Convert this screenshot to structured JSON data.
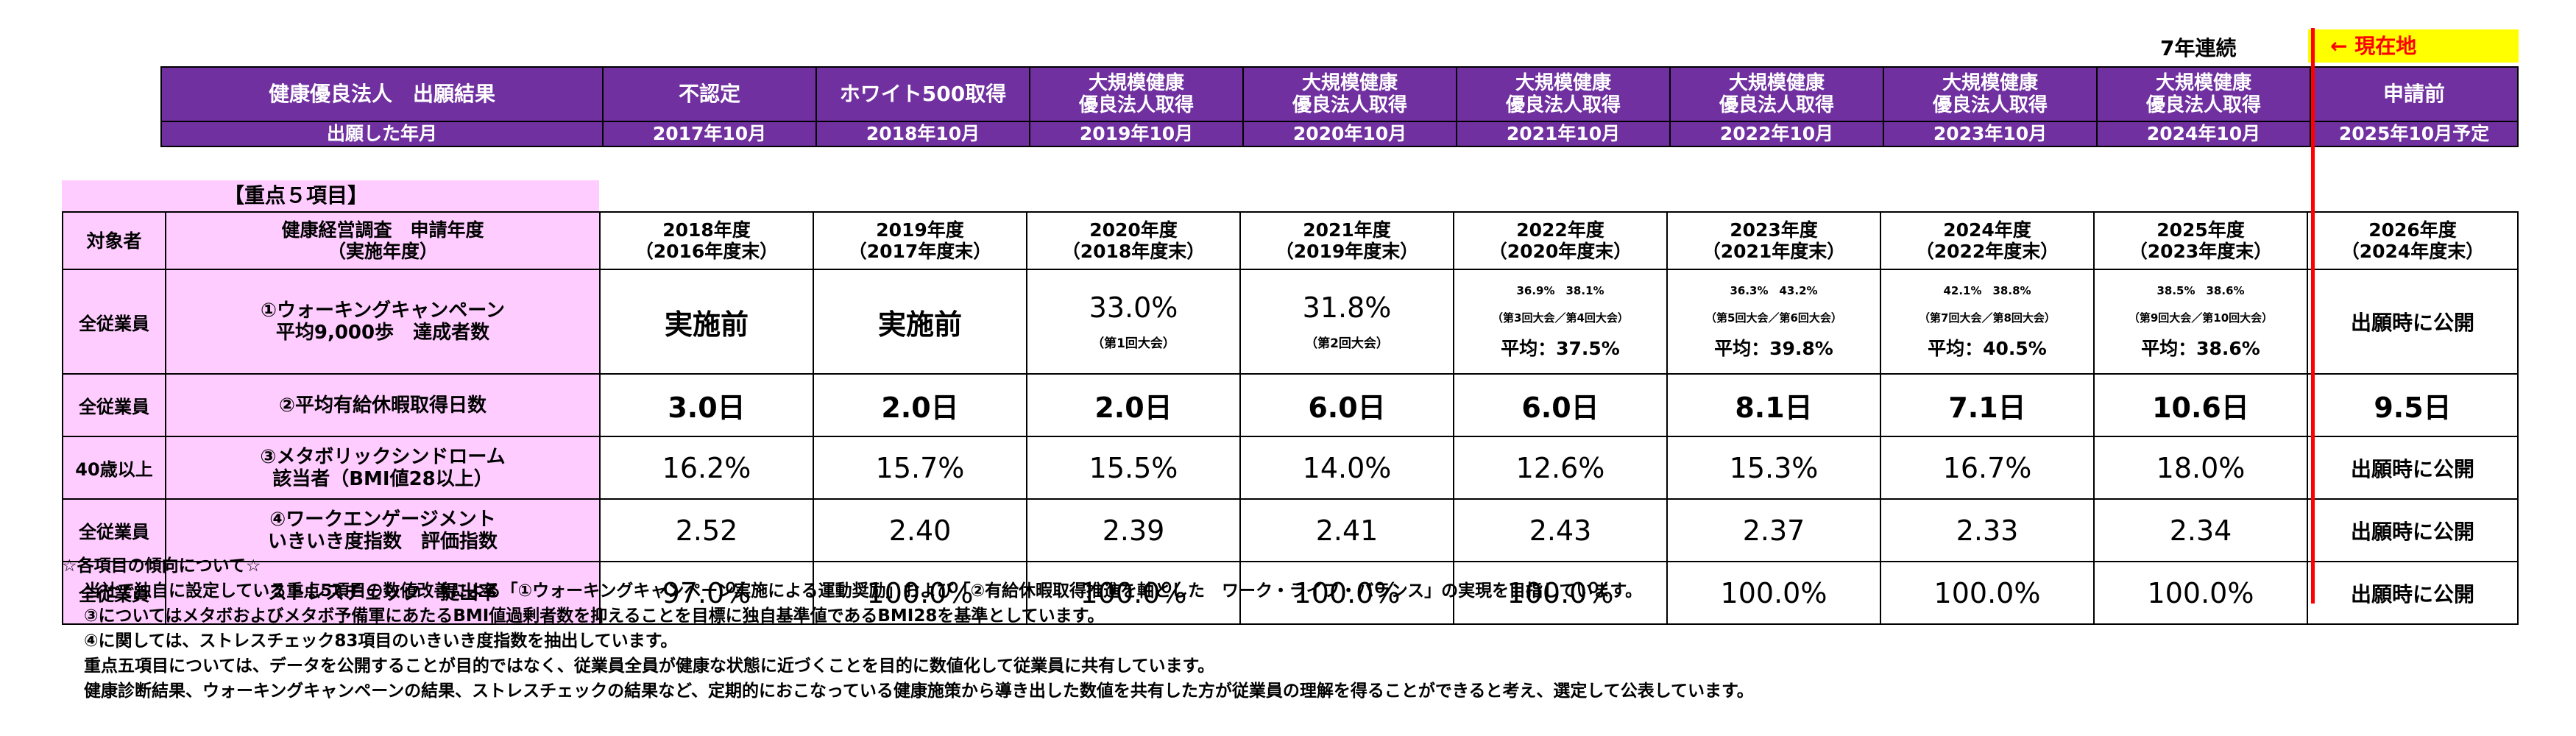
{
  "top_label": "7年連続",
  "current_marker": "← 現在地",
  "status_table": {
    "row1": [
      "健康優良法人　出願結果",
      "不認定",
      "ホワイト500取得",
      "大規模健康\n優良法人取得",
      "大規模健康\n優良法人取得",
      "大規模健康\n優良法人取得",
      "大規模健康\n優良法人取得",
      "大規模健康\n優良法人取得",
      "大規模健康\n優良法人取得",
      "申請前"
    ],
    "row2": [
      "出願した年月",
      "2017年10月",
      "2018年10月",
      "2019年10月",
      "2020年10月",
      "2021年10月",
      "2022年10月",
      "2023年10月",
      "2024年10月",
      "2025年10月予定"
    ]
  },
  "focus_caption": "【重点５項目】",
  "metrics_table": {
    "header": {
      "target": "対象者",
      "item": "健康経営調査　申請年度\n（実施年度）",
      "years": [
        "2018年度\n（2016年度末）",
        "2019年度\n（2017年度末）",
        "2020年度\n（2018年度末）",
        "2021年度\n（2019年度末）",
        "2022年度\n（2020年度末）",
        "2023年度\n（2021年度末）",
        "2024年度\n（2022年度末）",
        "2025年度\n（2023年度末）",
        "2026年度\n（2024年度末）"
      ]
    },
    "rows": [
      {
        "target": "全従業員",
        "item": "①ウォーキングキャンペーン\n平均9,000歩　達成者数",
        "c1": "実施前",
        "c2": "実施前",
        "c3_main": "33.0%",
        "c3_sub": "（第1回大会）",
        "c4_main": "31.8%",
        "c4_sub": "（第2回大会）",
        "c5_tiny1": "36.9%　38.1%",
        "c5_tiny2": "（第3回大会／第4回大会）",
        "c5_avg": "平均：37.5%",
        "c6_tiny1": "36.3%　43.2%",
        "c6_tiny2": "（第5回大会／第6回大会）",
        "c6_avg": "平均：39.8%",
        "c7_tiny1": "42.1%　38.8%",
        "c7_tiny2": "（第7回大会／第8回大会）",
        "c7_avg": "平均：40.5%",
        "c8_tiny1": "38.5%　38.6%",
        "c8_tiny2": "（第9回大会／第10回大会）",
        "c8_avg": "平均：38.6%",
        "c9": "出願時に公開"
      },
      {
        "target": "全従業員",
        "item": "②平均有給休暇取得日数",
        "values": [
          "3.0日",
          "2.0日",
          "2.0日",
          "6.0日",
          "6.0日",
          "8.1日",
          "7.1日",
          "10.6日",
          "9.5日"
        ]
      },
      {
        "target": "40歳以上",
        "item": "③メタボリックシンドローム\n該当者（BMI値28以上）",
        "values": [
          "16.2%",
          "15.7%",
          "15.5%",
          "14.0%",
          "12.6%",
          "15.3%",
          "16.7%",
          "18.0%",
          "出願時に公開"
        ]
      },
      {
        "target": "全従業員",
        "item": "④ワークエンゲージメント\nいきいき度指数　評価指数",
        "values": [
          "2.52",
          "2.40",
          "2.39",
          "2.41",
          "2.43",
          "2.37",
          "2.33",
          "2.34",
          "出願時に公開"
        ]
      },
      {
        "target": "全従業員",
        "item": "ストレスチェック　提出率",
        "values": [
          "97.0%",
          "100.0%",
          "100.0%",
          "100.0%",
          "100.0%",
          "100.0%",
          "100.0%",
          "100.0%",
          "出願時に公開"
        ]
      }
    ]
  },
  "notes": [
    "☆各項目の傾向について☆",
    "当社で独自に設定している重点5項目の数値改善による「①ウォーキングキャンペーン実施による運動奨励」および「②有給休暇取得推進を軸とした　ワーク・ライフ・バランス」の実現を目指しています。",
    "③についてはメタボおよびメタボ予備軍にあたるBMI値過剰者数を抑えることを目標に独自基準値であるBMI28を基準としています。",
    "④に関しては、ストレスチェック83項目のいきいき度指数を抽出しています。",
    "重点五項目については、データを公開することが目的ではなく、従業員全員が健康な状態に近づくことを目的に数値化して従業員に共有しています。",
    "健康診断結果、ウォーキングキャンペーンの結果、ストレスチェックの結果など、定期的におこなっている健康施策から導き出した数値を共有した方が従業員の理解を得ることができると考え、選定して公表しています。"
  ]
}
